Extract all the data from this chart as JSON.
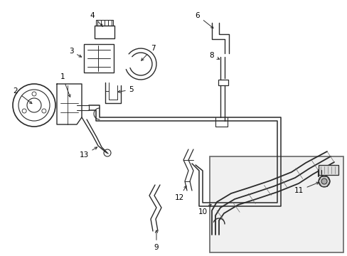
{
  "background_color": "#ffffff",
  "line_color": "#2a2a2a",
  "label_color": "#000000",
  "border_color": "#888888",
  "figsize": [
    4.89,
    3.6
  ],
  "dpi": 100,
  "lw": 0.9
}
